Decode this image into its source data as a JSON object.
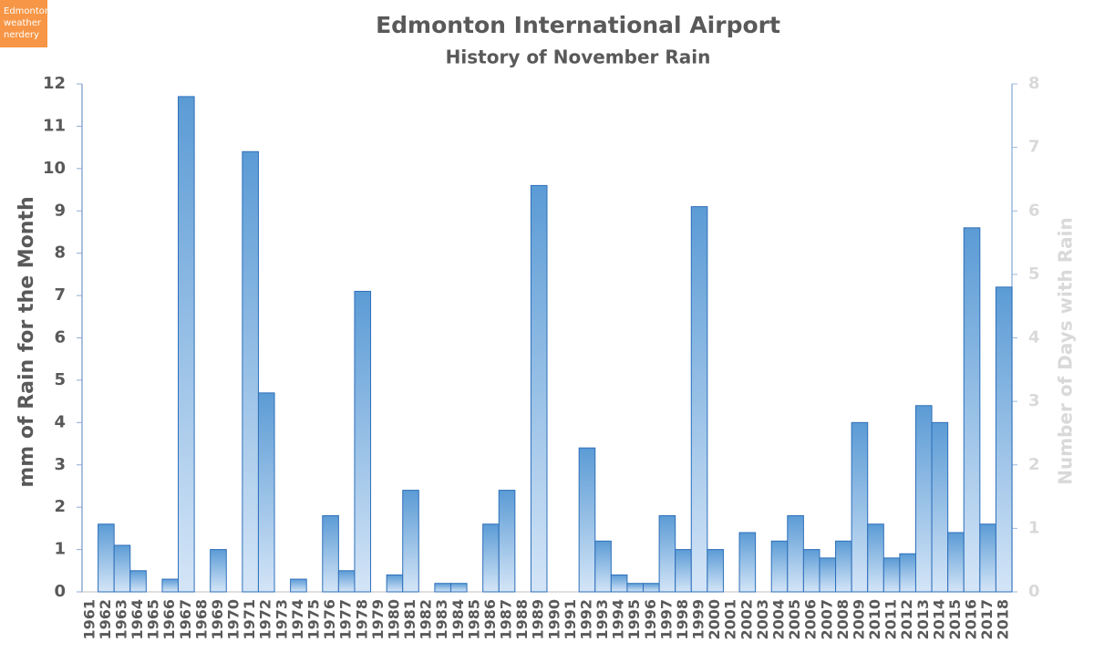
{
  "chart_data": {
    "type": "bar",
    "title": "Edmonton International Airport",
    "subtitle": "History of November Rain",
    "badge": [
      "Edmonton",
      "weather",
      "nerdery"
    ],
    "y_label": "mm of Rain for the Month",
    "y2_label": "Number of Days with Rain",
    "categories": [
      "1961",
      "1962",
      "1963",
      "1964",
      "1965",
      "1966",
      "1967",
      "1968",
      "1969",
      "1970",
      "1971",
      "1972",
      "1973",
      "1974",
      "1975",
      "1976",
      "1977",
      "1978",
      "1979",
      "1980",
      "1981",
      "1982",
      "1983",
      "1984",
      "1985",
      "1986",
      "1987",
      "1988",
      "1989",
      "1990",
      "1991",
      "1992",
      "1993",
      "1994",
      "1995",
      "1996",
      "1997",
      "1998",
      "1999",
      "2000",
      "2001",
      "2002",
      "2003",
      "2004",
      "2005",
      "2006",
      "2007",
      "2008",
      "2009",
      "2010",
      "2011",
      "2012",
      "2013",
      "2014",
      "2015",
      "2016",
      "2017",
      "2018"
    ],
    "values": [
      0,
      1.6,
      1.1,
      0.5,
      0,
      0.3,
      11.7,
      0,
      1.0,
      0,
      10.4,
      4.7,
      0,
      0.3,
      0,
      1.8,
      0.5,
      7.1,
      0,
      0.4,
      2.4,
      0,
      0.2,
      0.2,
      0,
      1.6,
      2.4,
      0,
      9.6,
      0,
      0,
      3.4,
      1.2,
      0.4,
      0.2,
      0.2,
      1.8,
      1.0,
      9.1,
      1.0,
      0,
      1.4,
      0,
      1.2,
      1.8,
      1.0,
      0.8,
      1.2,
      4.0,
      1.6,
      0.8,
      0.9,
      4.4,
      4.0,
      1.4,
      8.6,
      1.6,
      7.2
    ],
    "color": "#5b9bd5",
    "ylim": [
      0,
      12
    ],
    "yticks": [
      0,
      1,
      2,
      3,
      4,
      5,
      6,
      7,
      8,
      9,
      10,
      11,
      12
    ],
    "y2lim": [
      0,
      8
    ],
    "y2ticks": [
      0,
      1,
      2,
      3,
      4,
      5,
      6,
      7,
      8
    ]
  }
}
